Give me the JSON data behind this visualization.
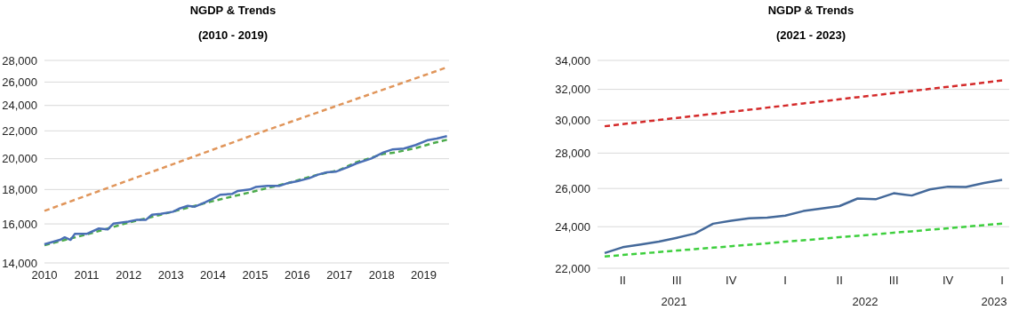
{
  "chart_data": [
    {
      "type": "line",
      "title": "NGDP & Trends",
      "subtitle": "(2010 - 2019)",
      "log": "y",
      "grid": "y",
      "marker": "none",
      "xlim": [
        2010,
        2019.6
      ],
      "xticks": [
        2010,
        2011,
        2012,
        2013,
        2014,
        2015,
        2016,
        2017,
        2018,
        2019
      ],
      "ylim": [
        14000,
        28000
      ],
      "yticks": [
        {
          "value": 14000,
          "label": "14,000"
        },
        {
          "value": 16000,
          "label": "16,000"
        },
        {
          "value": 18000,
          "label": "18,000"
        },
        {
          "value": 20000,
          "label": "20,000"
        },
        {
          "value": 22000,
          "label": "22,000"
        },
        {
          "value": 24000,
          "label": "24,000"
        },
        {
          "value": 26000,
          "label": "26,000"
        },
        {
          "value": 28000,
          "label": "28,000"
        }
      ],
      "series": [
        {
          "color": "#e0955a",
          "line_style": "dashed",
          "x": [
            2010.0,
            2015.05,
            2019.5
          ],
          "values": [
            16730,
            21800,
            27270
          ]
        },
        {
          "color": "#4cab4c",
          "line_style": "dashed",
          "x": [
            2010.0,
            2011.0,
            2011.99,
            2012.76,
            2013.57,
            2014.03,
            2014.87,
            2015.79,
            2016.49,
            2016.98,
            2017.4,
            2018.04,
            2018.32,
            2018.81,
            2019.23,
            2019.55
          ],
          "values": [
            14880,
            15430,
            16070,
            16510,
            17020,
            17320,
            17820,
            18410,
            18940,
            19220,
            19760,
            20330,
            20430,
            20740,
            21100,
            21340
          ]
        },
        {
          "color": "#4a6fb5",
          "line_style": "solid",
          "x": [
            2010.0,
            2010.37,
            2010.48,
            2010.62,
            2010.72,
            2011.0,
            2011.29,
            2011.5,
            2011.64,
            2011.99,
            2012.2,
            2012.41,
            2012.55,
            2012.76,
            2013.05,
            2013.19,
            2013.4,
            2013.57,
            2013.82,
            2014.03,
            2014.17,
            2014.45,
            2014.59,
            2014.87,
            2015.01,
            2015.29,
            2015.57,
            2015.79,
            2016.0,
            2016.28,
            2016.49,
            2016.7,
            2016.91,
            2017.19,
            2017.4,
            2017.76,
            2018.04,
            2018.25,
            2018.53,
            2018.81,
            2019.1,
            2019.31,
            2019.55
          ],
          "values": [
            14920,
            15150,
            15280,
            15150,
            15460,
            15460,
            15750,
            15700,
            16020,
            16130,
            16230,
            16230,
            16510,
            16560,
            16680,
            16850,
            17020,
            16970,
            17230,
            17490,
            17680,
            17730,
            17910,
            18000,
            18150,
            18220,
            18220,
            18410,
            18520,
            18710,
            18940,
            19090,
            19130,
            19420,
            19680,
            20020,
            20430,
            20640,
            20710,
            20960,
            21320,
            21430,
            21610
          ]
        }
      ]
    },
    {
      "type": "line",
      "title": "NGDP & Trends",
      "subtitle": "(2021 - 2023)",
      "log": "y",
      "grid": "y",
      "marker": "none",
      "categories": [
        null,
        "II",
        null,
        null,
        "III",
        null,
        null,
        "IV",
        null,
        null,
        "I",
        null,
        null,
        "II",
        null,
        null,
        "III",
        null,
        null,
        "IV",
        null,
        null,
        "I"
      ],
      "annotations": [
        "2021",
        "2022",
        "2023"
      ],
      "ylim": [
        22000,
        34000
      ],
      "yticks": [
        {
          "value": 22000,
          "label": "22,000"
        },
        {
          "value": 24000,
          "label": "24,000"
        },
        {
          "value": 26000,
          "label": "26,000"
        },
        {
          "value": 28000,
          "label": "28,000"
        },
        {
          "value": 30000,
          "label": "30,000"
        },
        {
          "value": 32000,
          "label": "32,000"
        },
        {
          "value": 34000,
          "label": "34,000"
        }
      ],
      "series": [
        {
          "color": "#d42a2a",
          "line_style": "dashed",
          "values": [
            29620,
            29750,
            29880,
            30010,
            30140,
            30270,
            30400,
            30530,
            30660,
            30800,
            30930,
            31070,
            31200,
            31340,
            31480,
            31610,
            31750,
            31890,
            32030,
            32170,
            32310,
            32450,
            32600
          ]
        },
        {
          "color": "#3ecf3e",
          "line_style": "dashed",
          "values": [
            22550,
            22620,
            22690,
            22760,
            22830,
            22900,
            22970,
            23040,
            23110,
            23180,
            23260,
            23330,
            23400,
            23480,
            23550,
            23620,
            23700,
            23770,
            23850,
            23920,
            24000,
            24080,
            24160
          ]
        },
        {
          "color": "#44699a",
          "line_style": "solid",
          "values": [
            22710,
            22990,
            23120,
            23260,
            23450,
            23660,
            24150,
            24300,
            24430,
            24460,
            24560,
            24800,
            24930,
            25060,
            25460,
            25420,
            25740,
            25620,
            25950,
            26100,
            26080,
            26300,
            26470
          ]
        }
      ]
    }
  ]
}
